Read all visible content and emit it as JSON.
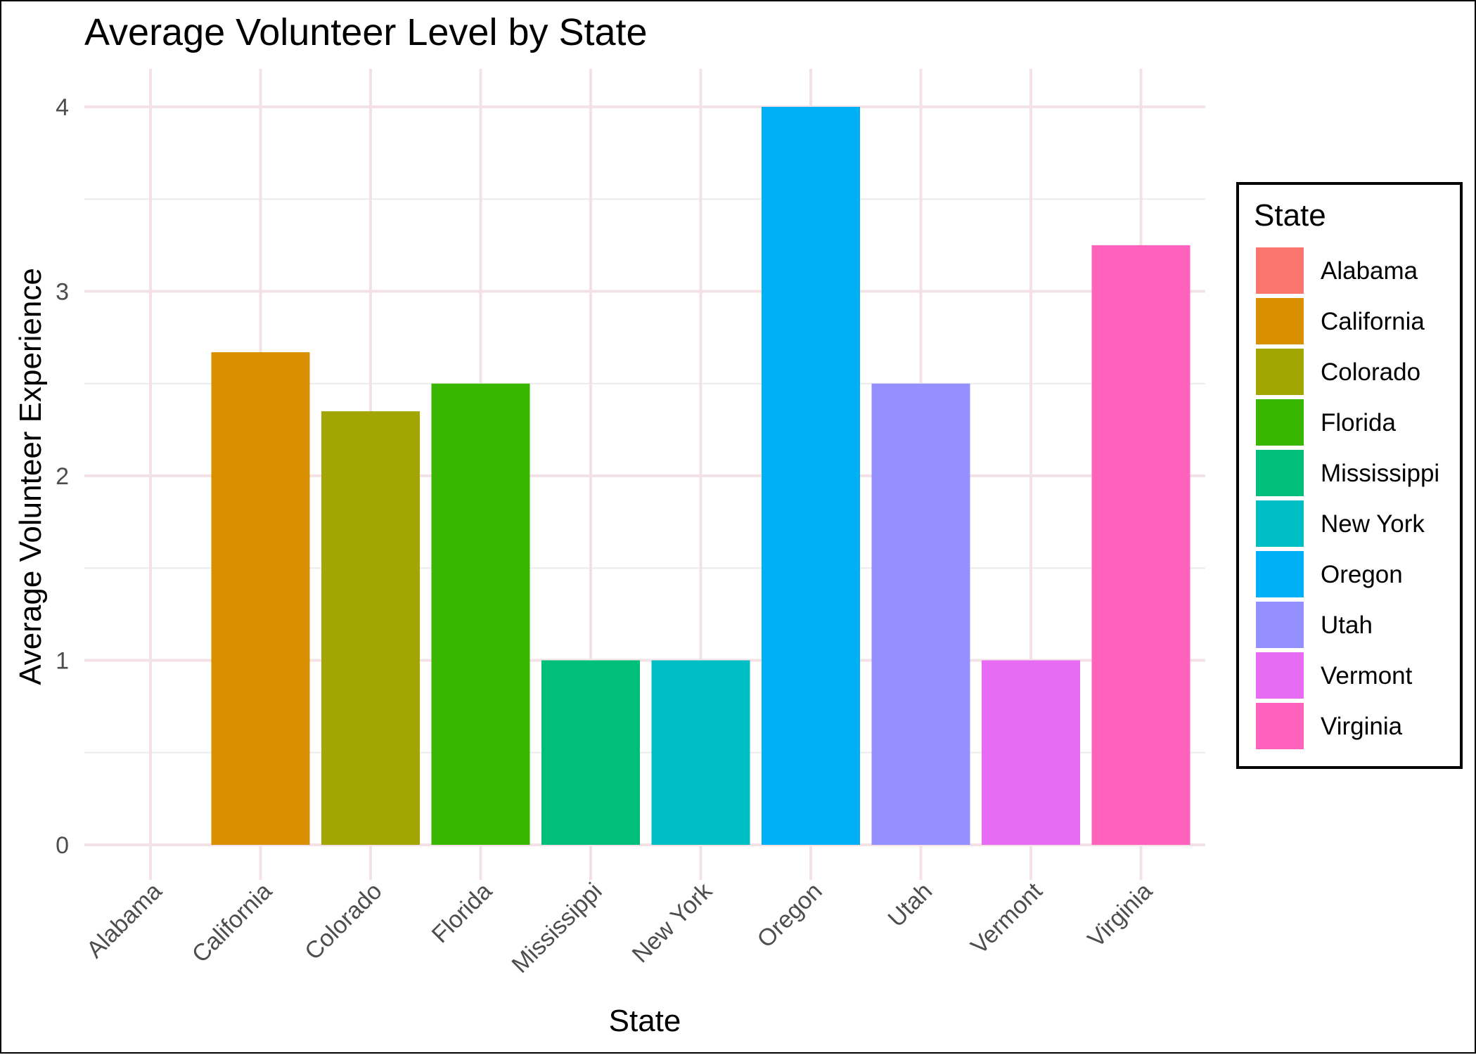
{
  "chart_data": {
    "type": "bar",
    "title": "Average Volunteer Level by State",
    "xlabel": "State",
    "ylabel": "Average Volunteer Experience",
    "categories": [
      "Alabama",
      "California",
      "Colorado",
      "Florida",
      "Mississippi",
      "New York",
      "Oregon",
      "Utah",
      "Vermont",
      "Virginia"
    ],
    "values": [
      0,
      2.67,
      2.35,
      2.5,
      1,
      1,
      4,
      2.5,
      1,
      3.25
    ],
    "colors": [
      "#F8766D",
      "#D89000",
      "#A3A500",
      "#39B600",
      "#00BF7D",
      "#00BFC4",
      "#00B0F6",
      "#9590FF",
      "#E76BF3",
      "#FF62BC"
    ],
    "yticks": [
      0,
      1,
      2,
      3,
      4
    ],
    "ylim": [
      0,
      4
    ],
    "grid": true,
    "legend": {
      "title": "State",
      "placement": "right",
      "entries": [
        "Alabama",
        "California",
        "Colorado",
        "Florida",
        "Mississippi",
        "New York",
        "Oregon",
        "Utah",
        "Vermont",
        "Virginia"
      ]
    }
  }
}
